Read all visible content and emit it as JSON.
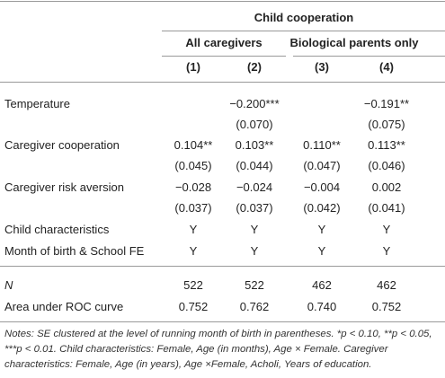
{
  "table": {
    "header": {
      "group": "Child cooperation",
      "subgroups": [
        "All caregivers",
        "Biological parents only"
      ],
      "columns": [
        "(1)",
        "(2)",
        "(3)",
        "(4)"
      ]
    },
    "rows": [
      [
        "Temperature",
        null,
        "−0.200***",
        null,
        "−0.191**"
      ],
      [
        null,
        null,
        "(0.070)",
        null,
        "(0.075)"
      ],
      [
        "Caregiver cooperation",
        "0.104**",
        "0.103**",
        "0.110**",
        "0.113**"
      ],
      [
        null,
        "(0.045)",
        "(0.044)",
        "(0.047)",
        "(0.046)"
      ],
      [
        "Caregiver risk aversion",
        "−0.028",
        "−0.024",
        "−0.004",
        "0.002"
      ],
      [
        null,
        "(0.037)",
        "(0.037)",
        "(0.042)",
        "(0.041)"
      ],
      [
        "Child characteristics",
        "Y",
        "Y",
        "Y",
        "Y"
      ],
      [
        "Month of birth & School FE",
        "Y",
        "Y",
        "Y",
        "Y"
      ],
      [
        "N",
        "522",
        "522",
        "462",
        "462"
      ],
      [
        "Area under ROC curve",
        "0.752",
        "0.762",
        "0.740",
        "0.752"
      ]
    ],
    "notes": "Notes: SE clustered at the level of running month of birth in parentheses. *p < 0.10, **p < 0.05, ***p < 0.01. Child characteristics: Female, Age (in months), Age × Female. Caregiver characteristics: Female, Age (in years), Age ×Female, Acholi, Years of education."
  }
}
